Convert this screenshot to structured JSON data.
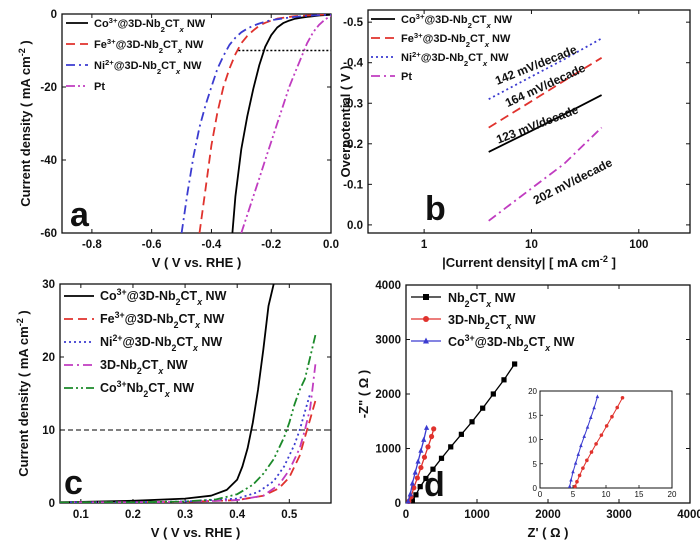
{
  "figure": {
    "panel_letters": [
      "a",
      "b",
      "c",
      "d"
    ]
  },
  "chart_data": [
    {
      "id": "a",
      "type": "line",
      "xlabel": "V ( V vs. RHE )",
      "ylabel": "Current density ( mA cm⁻² )",
      "xlim": [
        -0.9,
        0.0
      ],
      "ylim": [
        -60,
        0
      ],
      "xticks": [
        -0.8,
        -0.6,
        -0.4,
        -0.2,
        0.0
      ],
      "xtick_labels": [
        "-0.8",
        "-0.6",
        "-0.4",
        "-0.2",
        "0.0"
      ],
      "yticks": [
        -60,
        -40,
        -20,
        0
      ],
      "ytick_labels": [
        "-60",
        "-40",
        "-20",
        "0"
      ],
      "legend_position": "top-left",
      "reference_lines": [
        {
          "axis": "y",
          "value": -10,
          "from_x": -0.31,
          "to_x": 0.0,
          "style": "dotted",
          "color": "#000000"
        }
      ],
      "series": [
        {
          "name": "Co³⁺@3D-Nb₂CTₓ NW",
          "color": "#000000",
          "dash": "solid",
          "x": [
            -0.33,
            -0.32,
            -0.3,
            -0.28,
            -0.26,
            -0.24,
            -0.22,
            -0.2,
            -0.18,
            -0.16,
            -0.14,
            -0.12,
            -0.1,
            -0.08,
            -0.06,
            -0.04,
            -0.02,
            0.0
          ],
          "y": [
            -60,
            -50,
            -37,
            -28,
            -20.5,
            -14,
            -9,
            -5.8,
            -3.7,
            -2.5,
            -1.8,
            -1.3,
            -1.0,
            -0.8,
            -0.6,
            -0.4,
            -0.3,
            -0.2
          ]
        },
        {
          "name": "Fe³⁺@3D-Nb₂CTₓ NW",
          "color": "#e0322d",
          "dash": "dashed",
          "x": [
            -0.44,
            -0.42,
            -0.4,
            -0.38,
            -0.36,
            -0.34,
            -0.32,
            -0.3,
            -0.28,
            -0.26,
            -0.24,
            -0.22,
            -0.2,
            -0.18,
            -0.15,
            -0.12,
            -0.08,
            -0.04,
            0.0
          ],
          "y": [
            -60,
            -48,
            -36,
            -27,
            -20,
            -15,
            -11,
            -8,
            -6,
            -4.5,
            -3.2,
            -2.4,
            -1.8,
            -1.3,
            -0.9,
            -0.6,
            -0.4,
            -0.2,
            -0.1
          ]
        },
        {
          "name": "Ni²⁺@3D-Nb₂CTₓ NW",
          "color": "#3b3bd0",
          "dash": "dashdot",
          "x": [
            -0.5,
            -0.48,
            -0.46,
            -0.44,
            -0.42,
            -0.4,
            -0.38,
            -0.36,
            -0.34,
            -0.32,
            -0.3,
            -0.28,
            -0.26,
            -0.24,
            -0.22,
            -0.2,
            -0.16,
            -0.12,
            -0.08,
            -0.04,
            0.0
          ],
          "y": [
            -60,
            -49,
            -39,
            -31,
            -25,
            -20,
            -15,
            -11.5,
            -8.5,
            -6.5,
            -5,
            -4,
            -3.2,
            -2.6,
            -2.1,
            -1.7,
            -1.2,
            -0.8,
            -0.5,
            -0.3,
            -0.2
          ]
        },
        {
          "name": "Pt",
          "color": "#c03cc0",
          "dash": "dashdotdot",
          "x": [
            -0.3,
            -0.28,
            -0.26,
            -0.24,
            -0.22,
            -0.2,
            -0.18,
            -0.16,
            -0.14,
            -0.12,
            -0.1,
            -0.08,
            -0.06,
            -0.04,
            -0.02,
            0.0
          ],
          "y": [
            -60,
            -55,
            -50,
            -45,
            -40,
            -35,
            -30,
            -25,
            -20,
            -16,
            -12,
            -8,
            -5,
            -3,
            -1.5,
            -0.5
          ]
        }
      ]
    },
    {
      "id": "b",
      "type": "line",
      "xlabel": "|Current density| [ mA cm⁻² ]",
      "ylabel": "Overpotential ( V )",
      "xscale": "log",
      "xlim": [
        0.3,
        300
      ],
      "ylim": [
        0.02,
        -0.53
      ],
      "xticks": [
        1,
        10,
        100
      ],
      "xtick_labels": [
        "1",
        "10",
        "100"
      ],
      "yticks": [
        0.0,
        -0.1,
        -0.2,
        -0.3,
        -0.4,
        -0.5
      ],
      "ytick_labels": [
        "0.0",
        "-0.1",
        "-0.2",
        "-0.3",
        "-0.4",
        "-0.5"
      ],
      "legend_position": "top-left",
      "series": [
        {
          "name": "Co³⁺@3D-Nb₂CTₓ NW",
          "color": "#000000",
          "dash": "solid",
          "x": [
            4,
            10,
            20,
            45
          ],
          "y": [
            -0.18,
            -0.232,
            -0.272,
            -0.32
          ]
        },
        {
          "name": "Fe³⁺@3D-Nb₂CTₓ NW",
          "color": "#e0322d",
          "dash": "dashed",
          "x": [
            4,
            10,
            20,
            45
          ],
          "y": [
            -0.24,
            -0.305,
            -0.355,
            -0.412
          ]
        },
        {
          "name": "Ni²⁺@3D-Nb₂CTₓ NW",
          "color": "#3b3bd0",
          "dash": "dotted",
          "x": [
            4,
            10,
            20,
            45
          ],
          "y": [
            -0.31,
            -0.366,
            -0.408,
            -0.46
          ]
        },
        {
          "name": "Pt",
          "color": "#c03cc0",
          "dash": "dashdot",
          "x": [
            4,
            10,
            20,
            45
          ],
          "y": [
            -0.01,
            -0.09,
            -0.15,
            -0.24
          ]
        }
      ],
      "annotations": [
        {
          "text": "142 mV/decade"
        },
        {
          "text": "164 mV/decade"
        },
        {
          "text": "123 mV/decade"
        },
        {
          "text": "202 mV/decade"
        }
      ]
    },
    {
      "id": "c",
      "type": "line",
      "xlabel": "V ( V vs. RHE )",
      "ylabel": "Current density ( mA cm⁻² )",
      "xlim": [
        0.06,
        0.58
      ],
      "ylim": [
        0,
        30
      ],
      "xticks": [
        0.1,
        0.2,
        0.3,
        0.4,
        0.5
      ],
      "xtick_labels": [
        "0.1",
        "0.2",
        "0.3",
        "0.4",
        "0.5"
      ],
      "yticks": [
        0,
        10,
        20,
        30
      ],
      "ytick_labels": [
        "0",
        "10",
        "20",
        "30"
      ],
      "legend_position": "top-left",
      "reference_lines": [
        {
          "axis": "y",
          "value": 10,
          "from_x": 0.06,
          "to_x": 0.58,
          "style": "dashed",
          "color": "#000000"
        }
      ],
      "series": [
        {
          "name": "Co³⁺@3D-Nb₂CTₓ NW",
          "color": "#000000",
          "dash": "solid",
          "x": [
            0.06,
            0.1,
            0.2,
            0.3,
            0.35,
            0.38,
            0.4,
            0.41,
            0.42,
            0.43,
            0.44,
            0.45,
            0.46,
            0.47
          ],
          "y": [
            0.1,
            0.15,
            0.3,
            0.6,
            1.0,
            1.8,
            3.2,
            5.0,
            7.5,
            11,
            15.5,
            21,
            27,
            30
          ]
        },
        {
          "name": "Fe³⁺@3D-Nb₂CTₓ NW",
          "color": "#e0322d",
          "dash": "dashed",
          "x": [
            0.06,
            0.2,
            0.3,
            0.4,
            0.45,
            0.48,
            0.5,
            0.52,
            0.53,
            0.54,
            0.55
          ],
          "y": [
            0.1,
            0.1,
            0.15,
            0.4,
            1.0,
            2.0,
            3.5,
            6.5,
            9,
            11.5,
            14
          ]
        },
        {
          "name": "Ni²⁺@3D-Nb₂CTₓ NW",
          "color": "#3b3bd0",
          "dash": "dotted",
          "x": [
            0.06,
            0.2,
            0.3,
            0.4,
            0.44,
            0.47,
            0.49,
            0.51,
            0.52,
            0.53,
            0.54
          ],
          "y": [
            0.1,
            0.1,
            0.2,
            0.6,
            1.5,
            3.0,
            5.0,
            8.0,
            10,
            12.5,
            15
          ]
        },
        {
          "name": "3D-Nb₂CTₓ NW",
          "color": "#c03cc0",
          "dash": "dashdot",
          "x": [
            0.06,
            0.2,
            0.3,
            0.4,
            0.45,
            0.48,
            0.5,
            0.52,
            0.53,
            0.54,
            0.55
          ],
          "y": [
            0.1,
            0.1,
            0.15,
            0.4,
            1.0,
            2.5,
            4.5,
            7.5,
            10,
            13,
            19
          ]
        },
        {
          "name": "Co³⁺Nb₂CTₓ NW",
          "color": "#1b8a2a",
          "dash": "dashdotdot",
          "x": [
            0.06,
            0.2,
            0.3,
            0.36,
            0.4,
            0.43,
            0.45,
            0.47,
            0.49,
            0.5,
            0.51,
            0.52,
            0.53,
            0.54,
            0.55
          ],
          "y": [
            0.1,
            0.1,
            0.2,
            0.5,
            1.2,
            2.5,
            4.0,
            6.0,
            9.0,
            11,
            13.5,
            15.5,
            17,
            20,
            23
          ]
        }
      ]
    },
    {
      "id": "d",
      "type": "scatter",
      "xlabel": "Z' ( Ω )",
      "ylabel": "-Z\" ( Ω )",
      "xlim": [
        0,
        4000
      ],
      "ylim": [
        0,
        4000
      ],
      "xticks": [
        0,
        1000,
        2000,
        3000,
        4000
      ],
      "xtick_labels": [
        "0",
        "1000",
        "2000",
        "3000",
        "4000"
      ],
      "yticks": [
        0,
        1000,
        2000,
        3000,
        4000
      ],
      "ytick_labels": [
        "0",
        "1000",
        "2000",
        "3000",
        "4000"
      ],
      "legend_position": "top-left",
      "series": [
        {
          "name": "Nb₂CTₓ NW",
          "color": "#000000",
          "marker": "square",
          "x": [
            90,
            140,
            200,
            280,
            380,
            500,
            630,
            780,
            930,
            1080,
            1230,
            1380,
            1530
          ],
          "y": [
            40,
            150,
            300,
            450,
            620,
            820,
            1030,
            1260,
            1490,
            1740,
            2000,
            2260,
            2550
          ]
        },
        {
          "name": "3D-Nb₂CTₓ NW",
          "color": "#e0322d",
          "marker": "circle",
          "x": [
            40,
            70,
            110,
            160,
            210,
            260,
            310,
            360,
            390
          ],
          "y": [
            30,
            110,
            280,
            460,
            650,
            840,
            1030,
            1220,
            1360
          ]
        },
        {
          "name": "Co³⁺@3D-Nb₂CTₓ NW",
          "color": "#3b3bd0",
          "marker": "triangle",
          "x": [
            30,
            60,
            90,
            130,
            170,
            210,
            250,
            290
          ],
          "y": [
            30,
            160,
            360,
            560,
            760,
            960,
            1160,
            1380
          ]
        }
      ],
      "inset": {
        "xlim": [
          0,
          20
        ],
        "ylim": [
          0,
          20
        ],
        "xticks": [
          0,
          5,
          10,
          15,
          20
        ],
        "xtick_labels": [
          "0",
          "5",
          "10",
          "15",
          "20"
        ],
        "yticks": [
          0,
          5,
          10,
          15,
          20
        ],
        "ytick_labels": [
          "0",
          "5",
          "10",
          "15",
          "20"
        ],
        "series": [
          {
            "name": "3D-Nb₂CTₓ NW",
            "color": "#e0322d",
            "marker": "circle",
            "x": [
              5.3,
              5.6,
              6.0,
              6.5,
              7.1,
              7.8,
              8.5,
              9.3,
              10.1,
              10.9,
              11.7,
              12.5
            ],
            "y": [
              0.3,
              1.3,
              2.6,
              4.1,
              5.7,
              7.4,
              9.1,
              10.9,
              12.8,
              14.7,
              16.6,
              18.6
            ]
          },
          {
            "name": "Co³⁺@3D-Nb₂CTₓ NW",
            "color": "#3b3bd0",
            "marker": "triangle",
            "x": [
              4.5,
              4.7,
              5.0,
              5.4,
              5.8,
              6.2,
              6.7,
              7.2,
              7.7,
              8.2,
              8.7
            ],
            "y": [
              0.3,
              1.6,
              3.3,
              5.1,
              6.9,
              8.7,
              10.6,
              12.5,
              14.5,
              16.5,
              18.8
            ]
          }
        ]
      }
    }
  ]
}
